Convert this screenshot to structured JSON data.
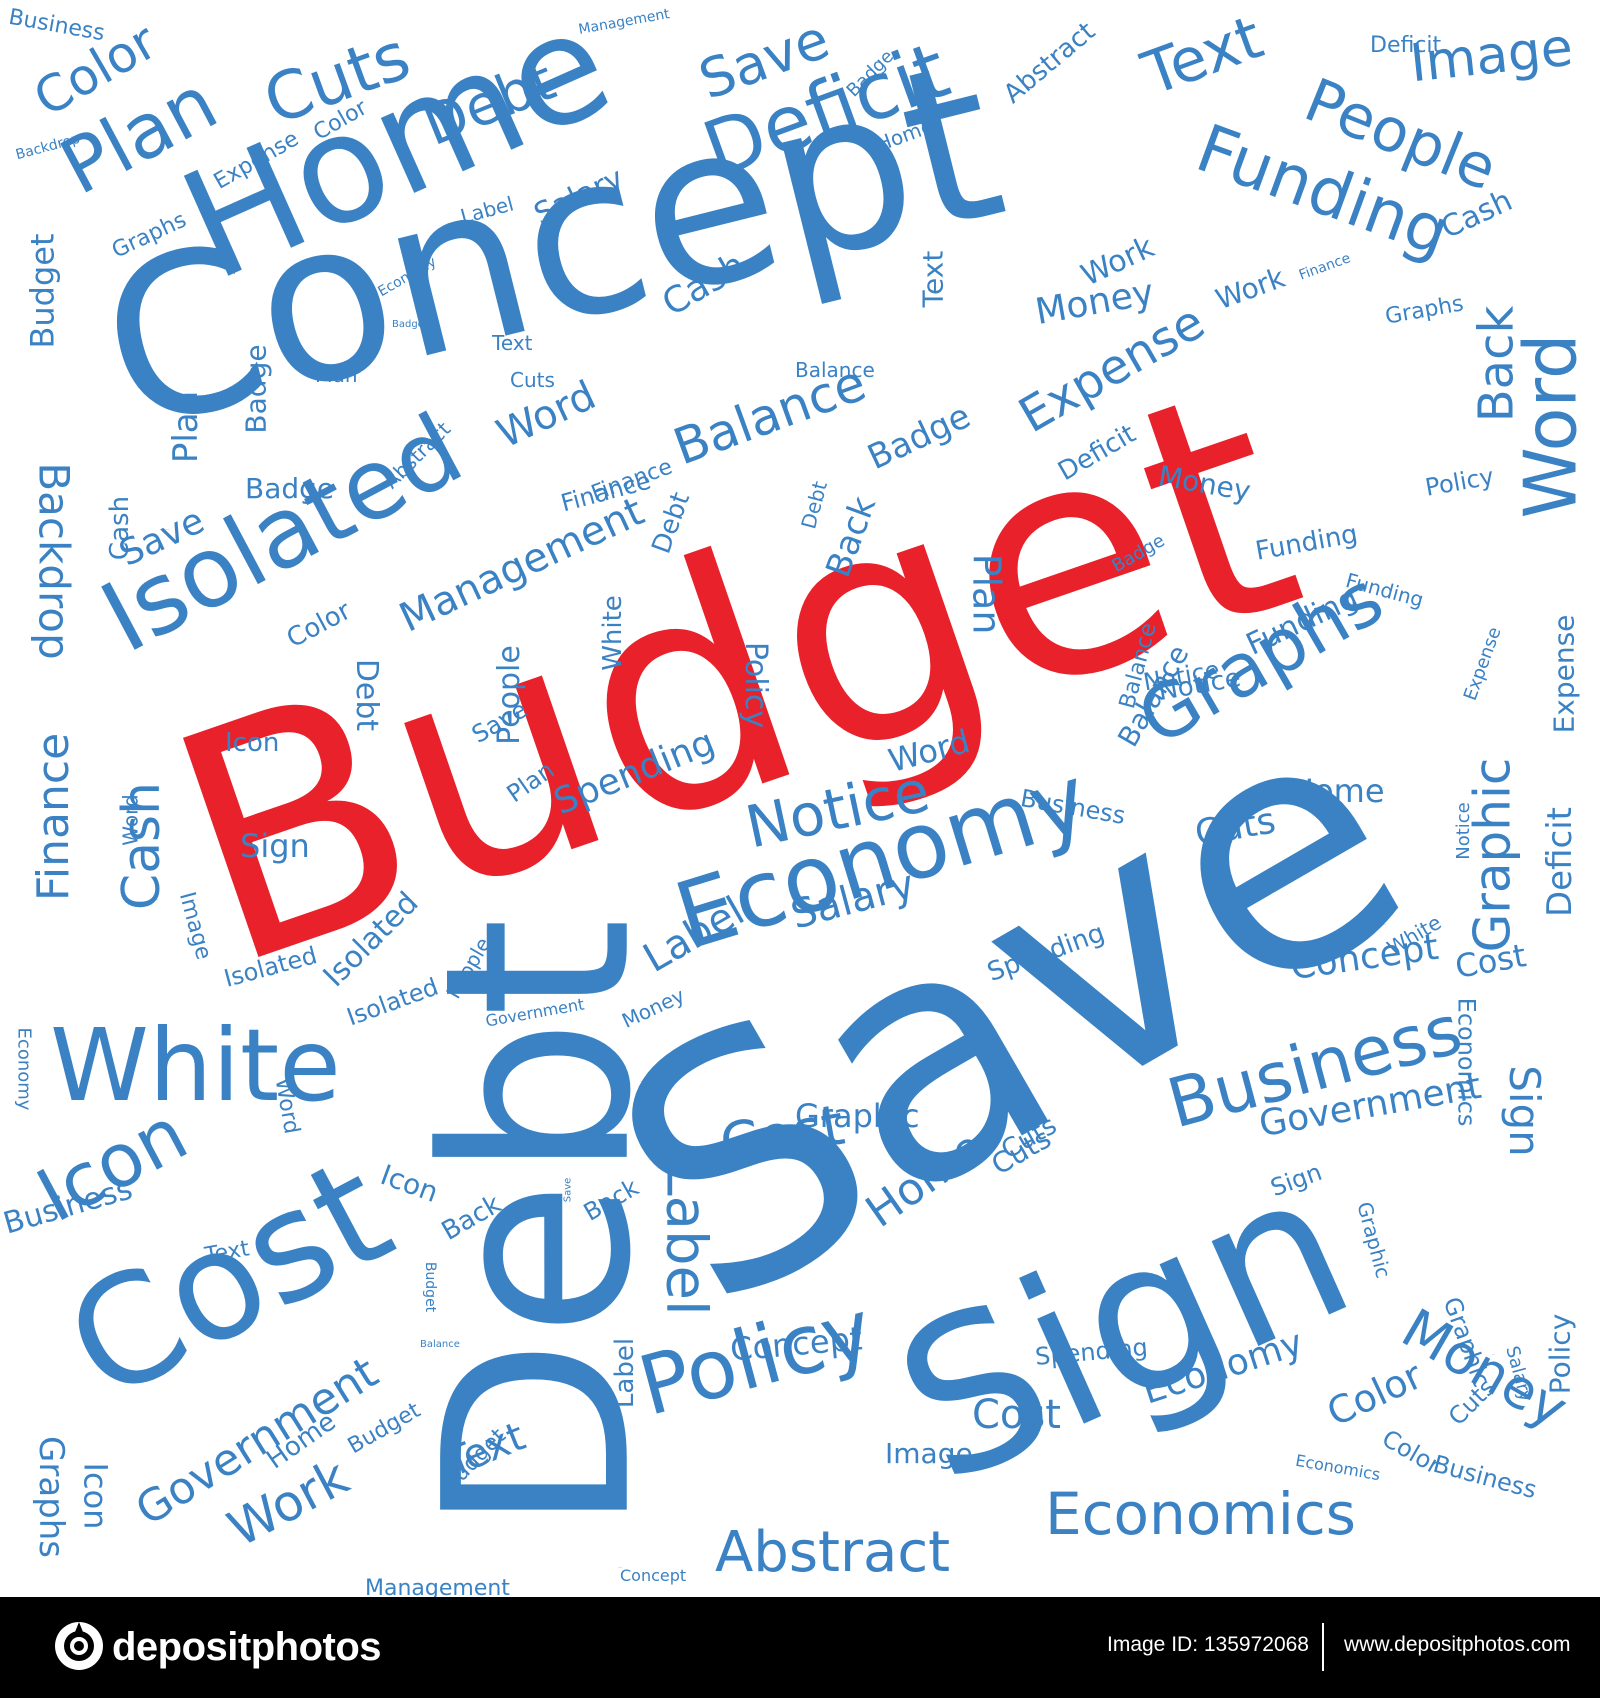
{
  "colors": {
    "background": "#ffffff",
    "word_blue": "#3a82c4",
    "word_red": "#e8212a",
    "footer_bg": "#000000",
    "footer_text": "#ffffff"
  },
  "words": {
    "w01": "Budget",
    "w02": "Save",
    "w03": "Debt",
    "w04": "Concept",
    "w05": "Sign",
    "w06": "Home",
    "w07": "Cost",
    "w08": "Isolated",
    "w09": "Economy",
    "w10": "White",
    "w11": "Deficit",
    "w12": "Plan",
    "w13": "Cuts",
    "w14": "Debt",
    "w15": "Funding",
    "w16": "People",
    "w17": "Text",
    "w18": "Image",
    "w19": "Save",
    "w20": "Color",
    "w21": "Graphs",
    "w22": "Word",
    "w23": "Business",
    "w24": "Policy",
    "w25": "Economics",
    "w26": "Abstract",
    "w27": "Notice",
    "w28": "Balance",
    "w29": "Expense",
    "w30": "Management",
    "w31": "Backdrop",
    "w32": "Finance",
    "w33": "Cash",
    "w34": "Icon",
    "w35": "Government",
    "w36": "Work",
    "w37": "Label",
    "w38": "Money",
    "w39": "Graphic",
    "w40": "Back",
    "w41": "Cost",
    "w42": "Text",
    "w43": "Business",
    "w44": "Budget",
    "w45": "Graphs",
    "w46": "Icon",
    "w47": "Word",
    "w48": "Spending",
    "w49": "Salary",
    "w50": "Label",
    "w51": "Home",
    "w52": "Concept",
    "w53": "Cost",
    "w54": "Economy",
    "w55": "Color",
    "w56": "Money",
    "w57": "Sign",
    "w58": "Government",
    "w59": "Deficit",
    "w60": "Concept",
    "w61": "Cost",
    "w62": "Cuts",
    "w63": "Graphic",
    "w64": "Cash",
    "w65": "Funding",
    "w66": "Back",
    "w67": "Plan",
    "w68": "Badge",
    "w69": "Cash",
    "w70": "Text",
    "w71": "Money",
    "w72": "Work",
    "w73": "Policy",
    "w74": "People",
    "w75": "Save",
    "w76": "Badge",
    "w77": "Finance",
    "w78": "Debt",
    "w79": "Color",
    "w80": "Notice",
    "w81": "White",
    "w82": "Isolated",
    "w83": "Isolated",
    "w84": "Label",
    "w85": "Salary",
    "w86": "Cuts",
    "w87": "Icon",
    "w88": "Back",
    "w89": "Home",
    "w90": "Home",
    "w91": "Business",
    "w92": "Balance",
    "w93": "Sign",
    "w94": "Save",
    "w95": "Cuts",
    "w96": "Policy",
    "w97": "Plan",
    "w98": "Badge",
    "w99": "Funding",
    "w100": "Expense",
    "w101": "Graphic",
    "w102": "Deficit",
    "w103": "Graphs",
    "w104": "Policy",
    "w105": "Cash",
    "w106": "Spending",
    "w107": "Word",
    "w108": "Plan",
    "w109": "Spending",
    "w110": "Business",
    "w111": "Economics",
    "w112": "Isolated",
    "w113": "Balance",
    "w114": "Finance",
    "w115": "Plan",
    "w116": "Budget",
    "w117": "Backdrop",
    "w118": "Icon",
    "w119": "Graphs",
    "w120": "Economy",
    "w121": "Sign",
    "w122": "Home",
    "w123": "Budget",
    "w124": "Work",
    "w125": "White",
    "w126": "Management",
    "w127": "Concept",
    "w128": "Color",
    "w129": "Graphics",
    "w130": "Image",
    "w131": "Text",
    "w132": "Expense",
    "w133": "Economics",
    "w134": "Cuts",
    "w135": "Salary",
    "w136": "Graphic",
    "w137": "Notice",
    "w138": "Deficit",
    "w139": "Expense",
    "w140": "Notice",
    "w141": "Abstract",
    "w142": "Balance",
    "w143": "Badge",
    "w144": "Color",
    "w145": "Management",
    "w146": "Business",
    "w147": "Label",
    "w148": "Badge",
    "w149": "Salary",
    "w150": "Money",
    "w151": "Debt",
    "w152": "Debt",
    "w153": "Economy",
    "w154": "People",
    "w155": "Image",
    "w156": "Word",
    "w157": "Money",
    "w158": "Badge",
    "w159": "Government",
    "w160": "People",
    "w161": "Image",
    "w162": "White",
    "w163": "Economics",
    "w164": "Concept",
    "w165": "Spending",
    "w166": "Save",
    "w167": "Back",
    "w168": "Budget",
    "w169": "Balance",
    "w170": "Icon",
    "w171": "Text",
    "w172": "Abstract",
    "w173": "Finance",
    "w174": "Cuts",
    "w175": "Funding",
    "w176": "Economy",
    "w177": "Backdrop",
    "w178": "Word"
  },
  "footer": {
    "brand": "depositphotos",
    "image_id": "Image ID: 135972068",
    "url": "www.depositphotos.com"
  }
}
